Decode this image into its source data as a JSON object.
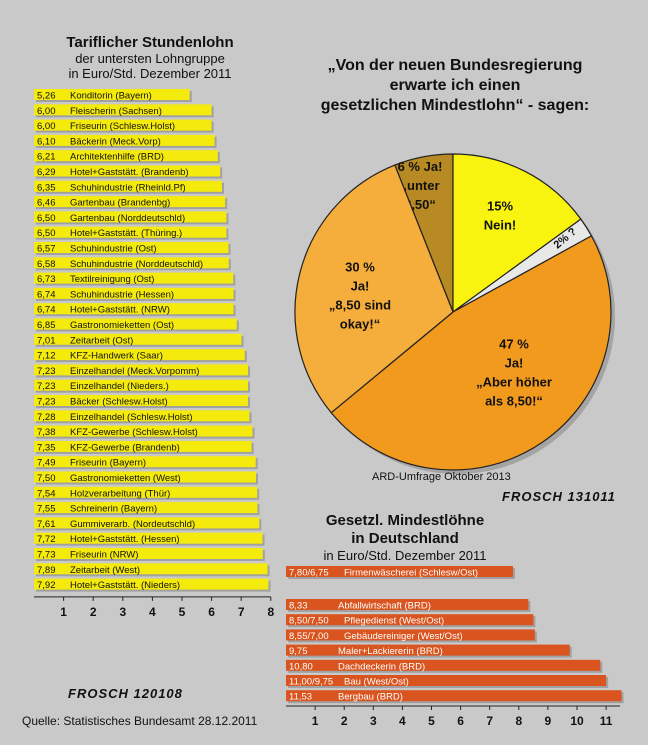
{
  "left_chart": {
    "title": "Tariflicher Stundenlohn",
    "subtitle1": "der untersten Lohngruppe",
    "subtitle2": "in Euro/Std. Dezember 2011"
  },
  "pie": {
    "title1": "„Von der neuen Bundesregierung",
    "title2": "erwarte ich einen",
    "title3": "gesetzlichen Mindestlohn“ - sagen:",
    "source_note": "ARD-Umfrage Oktober 2013"
  },
  "right_chart": {
    "title1": "Gesetzl. Mindestlöhne",
    "title2": "in Deutschland",
    "subtitle": "in Euro/Std. Dezember 2011"
  },
  "signature_top": "FROSCH 131011",
  "signature_bottom": "FROSCH 120108",
  "source": "Quelle: Statistisches Bundesamt 28.12.2011",
  "colors": {
    "background": "#c9c9c9",
    "left_bars": "#f4ea0c",
    "right_bars": "#d9541e",
    "pie_yes_under": "#b78a23",
    "pie_no": "#f8f40f",
    "pie_unknown": "#e8e8e8",
    "pie_higher": "#f29a1e",
    "pie_okay": "#f5ad3b"
  },
  "chart_data": [
    {
      "type": "bar",
      "orientation": "horizontal",
      "xlim": [
        0,
        8
      ],
      "ticks": [
        "1",
        "2",
        "3",
        "4",
        "5",
        "6",
        "7",
        "8"
      ],
      "items": [
        {
          "value_label": "5,26",
          "label": "Konditorin (Bayern)",
          "value": 5.26
        },
        {
          "value_label": "6,00",
          "label": "Fleischerin (Sachsen)",
          "value": 6.0
        },
        {
          "value_label": "6,00",
          "label": "Friseurin (Schlesw.Holst)",
          "value": 6.0
        },
        {
          "value_label": "6,10",
          "label": "Bäckerin (Meck.Vorp)",
          "value": 6.1
        },
        {
          "value_label": "6,21",
          "label": "Architektenhilfe (BRD)",
          "value": 6.21
        },
        {
          "value_label": "6,29",
          "label": "Hotel+Gaststätt. (Brandenb)",
          "value": 6.29
        },
        {
          "value_label": "6,35",
          "label": "Schuhindustrie (Rheinld.Pf)",
          "value": 6.35
        },
        {
          "value_label": "6,46",
          "label": "Gartenbau (Brandenbg)",
          "value": 6.46
        },
        {
          "value_label": "6,50",
          "label": "Gartenbau (Norddeutschld)",
          "value": 6.5
        },
        {
          "value_label": "6,50",
          "label": "Hotel+Gaststätt. (Thüring.)",
          "value": 6.5
        },
        {
          "value_label": "6,57",
          "label": "Schuhindustrie (Ost)",
          "value": 6.57
        },
        {
          "value_label": "6,58",
          "label": "Schuhindustrie (Norddeutschld)",
          "value": 6.58
        },
        {
          "value_label": "6,73",
          "label": "Textilreinigung (Ost)",
          "value": 6.73
        },
        {
          "value_label": "6,74",
          "label": "Schuhindustrie (Hessen)",
          "value": 6.74
        },
        {
          "value_label": "6,74",
          "label": "Hotel+Gaststätt. (NRW)",
          "value": 6.74
        },
        {
          "value_label": "6,85",
          "label": "Gastronomieketten (Ost)",
          "value": 6.85
        },
        {
          "value_label": "7,01",
          "label": "Zeitarbeit (Ost)",
          "value": 7.01
        },
        {
          "value_label": "7,12",
          "label": "KFZ-Handwerk (Saar)",
          "value": 7.12
        },
        {
          "value_label": "7,23",
          "label": "Einzelhandel (Meck.Vorpomm)",
          "value": 7.23
        },
        {
          "value_label": "7,23",
          "label": "Einzelhandel (Nieders.)",
          "value": 7.23
        },
        {
          "value_label": "7,23",
          "label": "Bäcker (Schlesw.Holst)",
          "value": 7.23
        },
        {
          "value_label": "7,28",
          "label": "Einzelhandel (Schlesw.Holst)",
          "value": 7.28
        },
        {
          "value_label": "7,38",
          "label": "KFZ-Gewerbe (Schlesw.Holst)",
          "value": 7.38
        },
        {
          "value_label": "7,35",
          "label": "KFZ-Gewerbe (Brandenb)",
          "value": 7.35
        },
        {
          "value_label": "7,49",
          "label": "Friseurin (Bayern)",
          "value": 7.49
        },
        {
          "value_label": "7,50",
          "label": "Gastronomieketten (West)",
          "value": 7.5
        },
        {
          "value_label": "7,54",
          "label": "Holzverarbeitung (Thür)",
          "value": 7.54
        },
        {
          "value_label": "7,55",
          "label": "Schreinerin (Bayern)",
          "value": 7.55
        },
        {
          "value_label": "7,61",
          "label": "Gummiverarb. (Nordeutschld)",
          "value": 7.61
        },
        {
          "value_label": "7,72",
          "label": "Hotel+Gaststätt. (Hessen)",
          "value": 7.72
        },
        {
          "value_label": "7,73",
          "label": "Friseurin (NRW)",
          "value": 7.73
        },
        {
          "value_label": "7,89",
          "label": "Zeitarbeit (West)",
          "value": 7.89
        },
        {
          "value_label": "7,92",
          "label": "Hotel+Gaststätt. (Nieders)",
          "value": 7.92
        }
      ]
    },
    {
      "type": "pie",
      "slices": [
        {
          "percent": 6,
          "label_lines": [
            "6 % Ja!",
            "„unter",
            "8,50“"
          ]
        },
        {
          "percent": 15,
          "label_lines": [
            "15%",
            "Nein!"
          ]
        },
        {
          "percent": 2,
          "label_lines": [
            "2% ?"
          ]
        },
        {
          "percent": 47,
          "label_lines": [
            "47 %",
            "Ja!",
            "„Aber höher",
            "als 8,50!“"
          ]
        },
        {
          "percent": 30,
          "label_lines": [
            "30 %",
            "Ja!",
            "„8,50 sind",
            "okay!“"
          ]
        }
      ]
    },
    {
      "type": "bar",
      "orientation": "horizontal",
      "xlim": [
        0,
        11
      ],
      "ticks": [
        "1",
        "2",
        "3",
        "4",
        "5",
        "6",
        "7",
        "8",
        "9",
        "10",
        "11"
      ],
      "items": [
        {
          "value_label": "7,80/6,75",
          "label": "Firmenwäscherei (Schlesw/Ost)",
          "value": 7.8,
          "group": 0
        },
        {
          "value_label": "8,33",
          "label": "Abfallwirtschaft (BRD)",
          "value": 8.33,
          "group": 1
        },
        {
          "value_label": "8,50/7,50",
          "label": "Pflegedienst (West/Ost)",
          "value": 8.5,
          "group": 1
        },
        {
          "value_label": "8,55/7,00",
          "label": "Gebäudereiniger (West/Ost)",
          "value": 8.55,
          "group": 1
        },
        {
          "value_label": "9,75",
          "label": "Maler+Lackiererin (BRD)",
          "value": 9.75,
          "group": 1
        },
        {
          "value_label": "10,80",
          "label": "Dachdeckerin (BRD)",
          "value": 10.8,
          "group": 1
        },
        {
          "value_label": "11,00/9,75",
          "label": "Bau (West/Ost)",
          "value": 11.0,
          "group": 1
        },
        {
          "value_label": "11,53",
          "label": "Bergbau (BRD)",
          "value": 11.53,
          "group": 1
        }
      ]
    }
  ]
}
